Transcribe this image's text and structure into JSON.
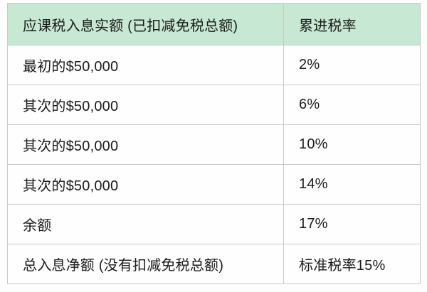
{
  "chart_data": {
    "type": "table",
    "columns": [
      "应课税入息实额 (已扣减免税总额)",
      "累进税率"
    ],
    "rows": [
      [
        "最初的$50,000",
        "2%"
      ],
      [
        "其次的$50,000",
        "6%"
      ],
      [
        "其次的$50,000",
        "10%"
      ],
      [
        "其次的$50,000",
        "14%"
      ],
      [
        "余额",
        "17%"
      ],
      [
        "总入息净额 (没有扣减免税总额)",
        "标准税率15%"
      ]
    ],
    "legend_position": "none",
    "grid": true
  },
  "colors": {
    "header_bg": "#c7e8d2",
    "border": "#c9c9c9",
    "text": "#1b1b1b",
    "row_bg": "#fefefe"
  }
}
